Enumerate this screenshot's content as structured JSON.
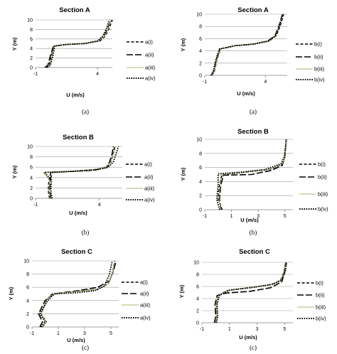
{
  "panel_captions": [
    "(a)",
    "(a)",
    "(b)",
    "(b)",
    "(c)",
    "(c)"
  ],
  "chart_data": [
    {
      "type": "line",
      "title": "Section A",
      "xlabel": "U (m/s)",
      "ylabel": "Y (m)",
      "xlim": [
        -1,
        5.2
      ],
      "ylim": [
        0,
        10
      ],
      "x_ticks": [
        -1,
        4
      ],
      "y_ticks": [
        0,
        2,
        4,
        6,
        8,
        10
      ],
      "grid": true,
      "legend_position": "right",
      "series": [
        {
          "name": "a(i)",
          "style": "dash",
          "x": [
            -0.15,
            0.1,
            0.3,
            0.5,
            1.5,
            3,
            4.2,
            4.6,
            4.9,
            5.2
          ],
          "y": [
            0,
            0.5,
            2.5,
            4.5,
            4.85,
            5.05,
            5.6,
            6.5,
            8,
            10
          ]
        },
        {
          "name": "a(ii)",
          "style": "longdash",
          "x": [
            -0.25,
            0,
            0.2,
            0.45,
            1.5,
            3,
            4.1,
            4.5,
            4.8,
            5.1
          ],
          "y": [
            0,
            0.5,
            2.5,
            4.5,
            4.85,
            5.05,
            5.6,
            6.5,
            8,
            10
          ]
        },
        {
          "name": "a(iii)",
          "style": "solid",
          "color": "#a9b975",
          "x": [
            -0.1,
            0.15,
            0.35,
            0.5,
            1.5,
            3,
            4.1,
            4.55,
            4.85,
            5.1
          ],
          "y": [
            0,
            0.5,
            2.5,
            4.5,
            4.85,
            5.05,
            5.6,
            6.5,
            8,
            10
          ]
        },
        {
          "name": "a(iv)",
          "style": "dot",
          "x": [
            -0.05,
            0.2,
            0.4,
            0.55,
            1.5,
            3,
            4,
            4.4,
            4.7,
            4.95
          ],
          "y": [
            0,
            0.5,
            2.5,
            4.5,
            4.85,
            5.05,
            5.6,
            6.5,
            8,
            10
          ]
        }
      ]
    },
    {
      "type": "line",
      "title": "Section A",
      "xlabel": "U (m/s)",
      "ylabel": "Y (m)",
      "xlim": [
        -1,
        5.8
      ],
      "ylim": [
        0,
        10
      ],
      "x_ticks": [
        -1,
        4
      ],
      "y_ticks": [
        0,
        2,
        4,
        6,
        8,
        10
      ],
      "grid": true,
      "legend_position": "right",
      "series": [
        {
          "name": "b(i)",
          "style": "dash",
          "x": [
            -0.4,
            -0.2,
            0,
            0.3,
            1.5,
            3,
            4.3,
            4.9,
            5.2,
            5.5
          ],
          "y": [
            0,
            0.6,
            2.5,
            4.3,
            4.85,
            5.1,
            5.6,
            6.5,
            8,
            10
          ]
        },
        {
          "name": "b(ii)",
          "style": "longdash",
          "x": [
            -0.45,
            -0.25,
            -0.05,
            0.25,
            1.5,
            3,
            4.2,
            4.8,
            5.1,
            5.4
          ],
          "y": [
            0,
            0.6,
            2.5,
            4.3,
            4.85,
            5.1,
            5.6,
            6.5,
            8,
            10
          ]
        },
        {
          "name": "b(iii)",
          "style": "solid",
          "color": "#a9b975",
          "x": [
            -0.4,
            -0.2,
            0,
            0.3,
            1.5,
            3,
            4.3,
            4.85,
            5.15,
            5.45
          ],
          "y": [
            0,
            0.6,
            2.5,
            4.3,
            4.85,
            5.1,
            5.6,
            6.5,
            8,
            10
          ]
        },
        {
          "name": "b(iv)",
          "style": "dot",
          "x": [
            -0.5,
            -0.3,
            -0.1,
            0.2,
            1.5,
            3,
            4.25,
            4.85,
            5.15,
            5.45
          ],
          "y": [
            0,
            0.6,
            2.5,
            4.3,
            4.85,
            5.1,
            5.6,
            6.5,
            8,
            10
          ]
        }
      ]
    },
    {
      "type": "line",
      "title": "Section B",
      "xlabel": "U (m/s)",
      "ylabel": "Y (m)",
      "xlim": [
        -1,
        5.8
      ],
      "ylim": [
        0,
        10
      ],
      "x_ticks": [
        -1,
        4
      ],
      "y_ticks": [
        0,
        2,
        4,
        6,
        8,
        10
      ],
      "grid": true,
      "legend_position": "right",
      "series": [
        {
          "name": "a(i)",
          "style": "dash",
          "x": [
            0.1,
            0,
            0.05,
            0.2,
            2,
            3.5,
            4.6,
            4.9,
            5.1,
            5.2
          ],
          "y": [
            0,
            1.5,
            3.5,
            5,
            5.25,
            5.5,
            6,
            7,
            8.5,
            10
          ]
        },
        {
          "name": "a(ii)",
          "style": "longdash",
          "x": [
            0.2,
            0.1,
            0.15,
            0.3,
            2,
            3.5,
            4.5,
            4.8,
            5,
            5.1
          ],
          "y": [
            0,
            1.5,
            3.5,
            5,
            5.2,
            5.4,
            5.9,
            7,
            8.5,
            10
          ]
        },
        {
          "name": "a(iii)",
          "style": "solid",
          "color": "#a9b975",
          "x": [
            0.15,
            0.05,
            0.1,
            -0.4,
            1.5,
            3.2,
            4.5,
            4.9,
            5.1,
            5.3
          ],
          "y": [
            0,
            1.5,
            3.5,
            5,
            5.2,
            5.4,
            6,
            7,
            8.5,
            10
          ]
        },
        {
          "name": "a(iv)",
          "style": "dot",
          "x": [
            0.3,
            0.2,
            0.25,
            -0.3,
            2,
            3.8,
            4.7,
            5.1,
            5.3,
            5.5
          ],
          "y": [
            0,
            1.5,
            3.5,
            5,
            5.2,
            5.5,
            6,
            7,
            8.5,
            10
          ]
        }
      ]
    },
    {
      "type": "line",
      "title": "Section B",
      "xlabel": "U (m/s)",
      "ylabel": "Y (m)",
      "xlim": [
        -1,
        5.6
      ],
      "ylim": [
        0,
        10
      ],
      "x_ticks": [
        -1,
        1,
        3,
        5
      ],
      "y_ticks": [
        0,
        2,
        4,
        6,
        8,
        10
      ],
      "grid": true,
      "legend_position": "right",
      "series": [
        {
          "name": "b(i)",
          "style": "dash",
          "x": [
            0.3,
            0,
            0.1,
            0.3,
            2,
            4,
            4.8,
            5,
            5.05,
            5.1
          ],
          "y": [
            0,
            1.5,
            3.5,
            5,
            5.3,
            5.8,
            6.5,
            7.5,
            9,
            10
          ]
        },
        {
          "name": "b(ii)",
          "style": "longdash",
          "x": [
            0.2,
            0.1,
            0.2,
            0.4,
            2.5,
            4,
            4.8,
            5,
            5.05,
            5.1
          ],
          "y": [
            0,
            1.5,
            3.5,
            4.9,
            5,
            5.6,
            6.3,
            7.5,
            9,
            10
          ]
        },
        {
          "name": "b(iii)",
          "style": "solid",
          "color": "#a9b975",
          "x": [
            0.2,
            0.05,
            0.15,
            0.2,
            2,
            4,
            4.8,
            5,
            5.05,
            5.1
          ],
          "y": [
            0,
            1.5,
            3.5,
            5,
            5.3,
            5.8,
            6.5,
            7.5,
            9,
            10
          ]
        },
        {
          "name": "b(iv)",
          "style": "dot",
          "x": [
            0.1,
            -0.1,
            0,
            0,
            1.5,
            3.5,
            4.7,
            4.95,
            5.05,
            5.1
          ],
          "y": [
            0,
            1.5,
            3.5,
            5.1,
            5.3,
            5.7,
            6.5,
            7.5,
            9,
            10
          ]
        }
      ]
    },
    {
      "type": "line",
      "title": "Section C",
      "xlabel": "U (m/s)",
      "ylabel": "Y (m)",
      "xlim": [
        -1,
        5.6
      ],
      "ylim": [
        0,
        10
      ],
      "x_ticks": [
        -1,
        1,
        3,
        5
      ],
      "y_ticks": [
        0,
        2,
        4,
        6,
        8,
        10
      ],
      "grid": true,
      "legend_position": "right",
      "series": [
        {
          "name": "a(i)",
          "style": "dash",
          "x": [
            -0.2,
            0.1,
            -0.3,
            0.1,
            0.5,
            2,
            4,
            4.8,
            5.1,
            5.3
          ],
          "y": [
            0,
            0.8,
            2,
            4,
            5,
            5.3,
            5.7,
            6.5,
            8,
            10
          ]
        },
        {
          "name": "a(ii)",
          "style": "longdash",
          "x": [
            -0.4,
            -0.2,
            -0.5,
            0,
            0.6,
            2.5,
            4,
            4.9,
            5.2,
            5.4
          ],
          "y": [
            0,
            0.8,
            2,
            4,
            5,
            5.5,
            6,
            7,
            8.5,
            10
          ]
        },
        {
          "name": "a(iii)",
          "style": "solid",
          "color": "#a9b975",
          "x": [
            -0.2,
            0.1,
            -0.3,
            0.1,
            0.5,
            2,
            4,
            4.8,
            5.1,
            5.3
          ],
          "y": [
            0,
            0.8,
            2,
            4,
            5,
            5.3,
            5.7,
            6.5,
            8,
            10
          ]
        },
        {
          "name": "a(iv)",
          "style": "dot",
          "x": [
            -0.3,
            0,
            -0.4,
            0.2,
            0.7,
            2.5,
            3.8,
            4.5,
            4.9,
            5.1
          ],
          "y": [
            0,
            0.8,
            2,
            4,
            5,
            5.2,
            5.5,
            6.2,
            8,
            10
          ]
        }
      ]
    },
    {
      "type": "line",
      "title": "Section C",
      "xlabel": "U (m/s)",
      "ylabel": "Y (m)",
      "xlim": [
        -1,
        5.6
      ],
      "ylim": [
        0,
        10
      ],
      "x_ticks": [
        -1,
        1,
        3,
        5
      ],
      "y_ticks": [
        0,
        2,
        4,
        6,
        8,
        10
      ],
      "grid": true,
      "legend_position": "right",
      "series": [
        {
          "name": "b(i)",
          "style": "dash",
          "x": [
            0,
            0.1,
            0.05,
            0.2,
            0.8,
            2.5,
            4,
            4.7,
            4.95,
            5.05
          ],
          "y": [
            0,
            1,
            3,
            4.5,
            5.3,
            5.8,
            6.3,
            7,
            8.5,
            10
          ]
        },
        {
          "name": "b(ii)",
          "style": "longdash",
          "x": [
            -0.1,
            0,
            -0.05,
            0.1,
            0.7,
            2.5,
            4,
            4.8,
            5,
            5.1
          ],
          "y": [
            0,
            1,
            3,
            4.5,
            4.9,
            5.2,
            5.8,
            6.8,
            8.5,
            10
          ]
        },
        {
          "name": "b(iii)",
          "style": "solid",
          "color": "#a9b975",
          "x": [
            0,
            0.1,
            0.05,
            0.2,
            0.8,
            2.5,
            4,
            4.7,
            4.95,
            5.05
          ],
          "y": [
            0,
            1,
            3,
            4.5,
            5.3,
            5.8,
            6.3,
            7,
            8.5,
            10
          ]
        },
        {
          "name": "b(iv)",
          "style": "dot",
          "x": [
            0.05,
            0.15,
            0.1,
            0.25,
            1,
            2.8,
            4.2,
            4.8,
            5.05,
            5.15
          ],
          "y": [
            0,
            1,
            3,
            4.5,
            5.4,
            5.9,
            6.4,
            7.1,
            8.5,
            10
          ]
        }
      ]
    }
  ]
}
